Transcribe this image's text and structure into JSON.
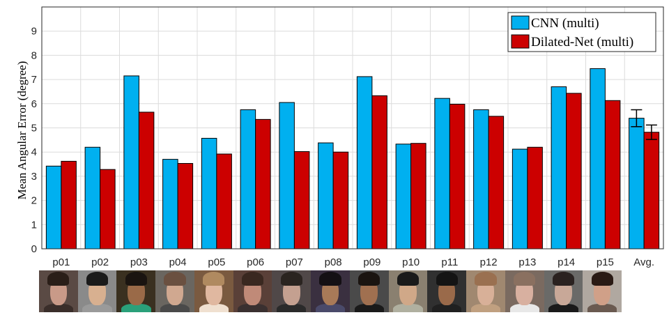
{
  "chart_data": {
    "type": "bar",
    "title": "",
    "xlabel": "",
    "ylabel": "Mean Angular Error (degree)",
    "ylim": [
      0,
      10
    ],
    "yticks": [
      0,
      1,
      2,
      3,
      4,
      5,
      6,
      7,
      8,
      9
    ],
    "grid": true,
    "legend_position": "top-right",
    "categories": [
      "p01",
      "p02",
      "p03",
      "p04",
      "p05",
      "p06",
      "p07",
      "p08",
      "p09",
      "p10",
      "p11",
      "p12",
      "p13",
      "p14",
      "p15",
      "Avg."
    ],
    "series": [
      {
        "name": "CNN (multi)",
        "color": "#00b0f0",
        "values": [
          3.42,
          4.2,
          7.15,
          3.7,
          4.57,
          5.75,
          6.05,
          4.38,
          7.12,
          4.33,
          6.22,
          5.75,
          4.12,
          6.7,
          7.45,
          5.4
        ],
        "error": [
          null,
          null,
          null,
          null,
          null,
          null,
          null,
          null,
          null,
          null,
          null,
          null,
          null,
          null,
          null,
          0.35
        ]
      },
      {
        "name": "Dilated-Net (multi)",
        "color": "#cc0000",
        "values": [
          3.62,
          3.28,
          5.65,
          3.53,
          3.92,
          5.35,
          4.02,
          4.0,
          6.33,
          4.36,
          5.98,
          5.48,
          4.2,
          6.43,
          6.13,
          4.82
        ],
        "error": [
          null,
          null,
          null,
          null,
          null,
          null,
          null,
          null,
          null,
          null,
          null,
          null,
          null,
          null,
          null,
          0.3
        ]
      }
    ]
  },
  "faces": [
    {
      "name": "p01",
      "bg": "#5a4a44",
      "skin": "#c99a88",
      "hair": "#2a1e18",
      "shirt": "#3a2e2a"
    },
    {
      "name": "p02",
      "bg": "#8a8a8a",
      "skin": "#d8b090",
      "hair": "#1a1a1a",
      "shirt": "#9a9a9a"
    },
    {
      "name": "p03",
      "bg": "#3a3020",
      "skin": "#9a6a48",
      "hair": "#1a1410",
      "shirt": "#2aa07a"
    },
    {
      "name": "p04",
      "bg": "#6a6660",
      "skin": "#d0a890",
      "hair": "#6a5040",
      "shirt": "#4a4a4a"
    },
    {
      "name": "p05",
      "bg": "#7a5a40",
      "skin": "#e0b8a0",
      "hair": "#b08a60",
      "shirt": "#f0e0d0"
    },
    {
      "name": "p06",
      "bg": "#5a4038",
      "skin": "#c08a78",
      "hair": "#3a2820",
      "shirt": "#3a3030"
    },
    {
      "name": "p07",
      "bg": "#504848",
      "skin": "#c4a090",
      "hair": "#2a2420",
      "shirt": "#2a2a2a"
    },
    {
      "name": "p08",
      "bg": "#3a3040",
      "skin": "#a87a58",
      "hair": "#141014",
      "shirt": "#4a4a6a"
    },
    {
      "name": "p09",
      "bg": "#4a4a4a",
      "skin": "#a07050",
      "hair": "#1a1410",
      "shirt": "#1a1a1a"
    },
    {
      "name": "p10",
      "bg": "#8a8070",
      "skin": "#d0a888",
      "hair": "#1a1a1a",
      "shirt": "#b0b0a0"
    },
    {
      "name": "p11",
      "bg": "#303030",
      "skin": "#9a6a4a",
      "hair": "#141414",
      "shirt": "#202020"
    },
    {
      "name": "p12",
      "bg": "#a08870",
      "skin": "#d8b098",
      "hair": "#9a7050",
      "shirt": "#c0a080"
    },
    {
      "name": "p13",
      "bg": "#7a6a60",
      "skin": "#d8b0a0",
      "hair": "#8a7060",
      "shirt": "#e8e8e8"
    },
    {
      "name": "p14",
      "bg": "#6a6a68",
      "skin": "#c8a898",
      "hair": "#2a2220",
      "shirt": "#1a1a1a"
    },
    {
      "name": "p15",
      "bg": "#b0a8a0",
      "skin": "#d0a088",
      "hair": "#2a1a14",
      "shirt": "#6a5a50"
    }
  ]
}
